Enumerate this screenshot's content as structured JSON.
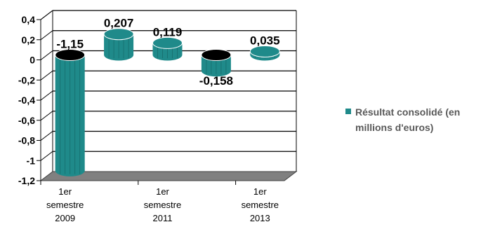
{
  "chart_data": {
    "type": "bar",
    "style": "3d-cylinder",
    "title": "",
    "xlabel": "",
    "ylabel": "",
    "categories": [
      "1er semestre 2009",
      "",
      "1er semestre 2011",
      "",
      "1er semestre 2013"
    ],
    "category_labels": [
      [
        "1er",
        "semestre",
        "2009"
      ],
      [
        "1er",
        "semestre",
        "2011"
      ],
      [
        "1er",
        "semestre",
        "2013"
      ]
    ],
    "series": [
      {
        "name": "Résultat consolidé (en millions d'euros)",
        "values": [
          -1.15,
          0.207,
          0.119,
          -0.158,
          0.035
        ],
        "data_labels": [
          "-1,15",
          "0,207",
          "0,119",
          "-0,158",
          "0,035"
        ],
        "color": "#1f8a8a"
      }
    ],
    "ylim": [
      -1.2,
      0.4
    ],
    "yticks": [
      "0,4",
      "0,2",
      "0",
      "-0,2",
      "-0,4",
      "-0,6",
      "-0,8",
      "-1",
      "-1,2"
    ],
    "grid": true,
    "legend_position": "right"
  },
  "legend": {
    "text_line1": "Résultat consolidé (en",
    "text_line2": "millions d'euros)",
    "color": "#1f8a8a"
  }
}
